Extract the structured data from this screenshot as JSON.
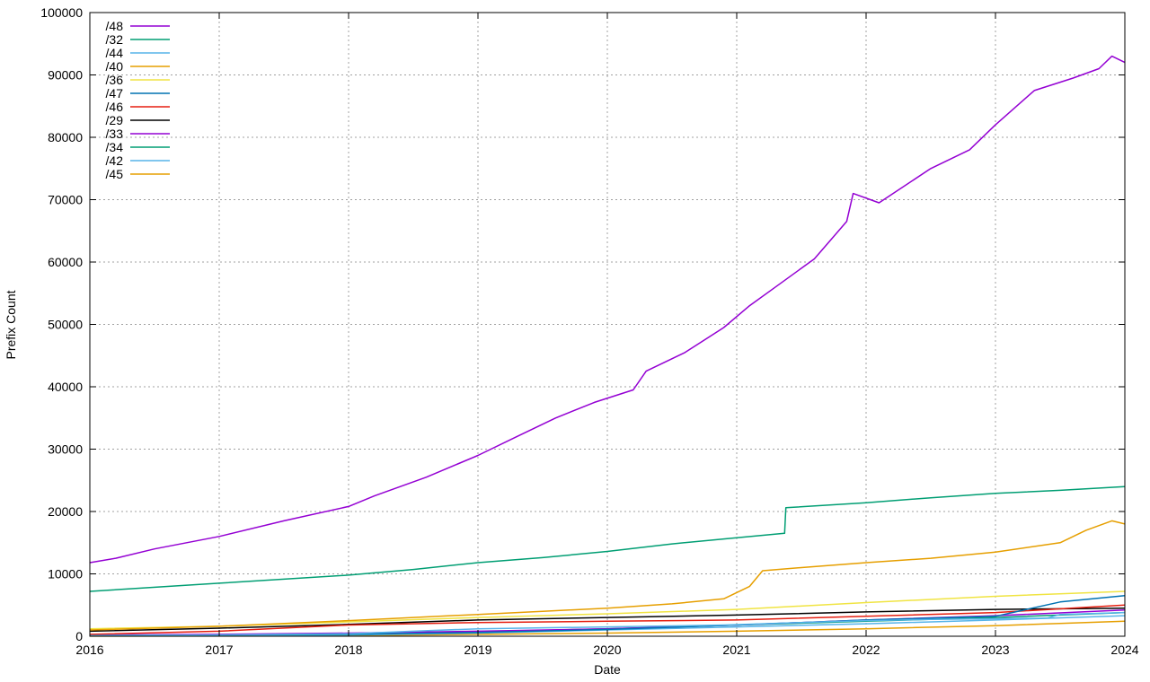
{
  "chart_data": {
    "type": "line",
    "title": "",
    "xlabel": "Date",
    "ylabel": "Prefix Count",
    "xlim": [
      2016,
      2024
    ],
    "ylim": [
      0,
      100000
    ],
    "x_ticks": [
      "2016",
      "2017",
      "2018",
      "2019",
      "2020",
      "2021",
      "2022",
      "2023",
      "2024"
    ],
    "y_ticks": [
      "0",
      "10000",
      "20000",
      "30000",
      "40000",
      "50000",
      "60000",
      "70000",
      "80000",
      "90000",
      "100000"
    ],
    "grid": true,
    "legend_position": "top-left",
    "series": [
      {
        "name": "/48",
        "color": "#9400d3",
        "x": [
          2016,
          2016.2,
          2016.5,
          2017,
          2017.5,
          2018,
          2018.2,
          2018.4,
          2018.6,
          2019,
          2019.3,
          2019.6,
          2019.9,
          2020.2,
          2020.3,
          2020.6,
          2020.9,
          2021.1,
          2021.3,
          2021.6,
          2021.85,
          2021.9,
          2022.1,
          2022.5,
          2022.8,
          2023,
          2023.3,
          2023.6,
          2023.8,
          2023.9,
          2024
        ],
        "y": [
          11800,
          12500,
          14000,
          16000,
          18500,
          20800,
          22500,
          24000,
          25500,
          29000,
          32000,
          35000,
          37500,
          39500,
          42500,
          45500,
          49500,
          53000,
          56000,
          60500,
          66500,
          71000,
          69500,
          75000,
          78000,
          82000,
          87500,
          89500,
          91000,
          93000,
          92000
        ]
      },
      {
        "name": "/32",
        "color": "#009e73",
        "x": [
          2016,
          2017,
          2018,
          2018.5,
          2019,
          2019.5,
          2020,
          2020.5,
          2021,
          2021.37,
          2021.38,
          2022,
          2022.5,
          2023,
          2023.5,
          2024
        ],
        "y": [
          7200,
          8500,
          9800,
          10700,
          11800,
          12600,
          13600,
          14800,
          15800,
          16500,
          20600,
          21400,
          22200,
          22900,
          23400,
          24000
        ]
      },
      {
        "name": "/44",
        "color": "#56b4e9",
        "x": [
          2016,
          2017,
          2018,
          2018.5,
          2019,
          2020,
          2020.9,
          2021.2,
          2021.5,
          2022,
          2022.5,
          2023,
          2023.4,
          2023.5,
          2024
        ],
        "y": [
          100,
          200,
          400,
          800,
          1200,
          1500,
          1800,
          2000,
          2200,
          2500,
          2700,
          2800,
          2900,
          3500,
          3800
        ]
      },
      {
        "name": "/40",
        "color": "#e69f00",
        "x": [
          2016,
          2017,
          2018,
          2019,
          2019.5,
          2020,
          2020.5,
          2020.9,
          2021.1,
          2021.2,
          2021.5,
          2022,
          2022.5,
          2023,
          2023.5,
          2023.7,
          2023.9,
          2024
        ],
        "y": [
          1000,
          1600,
          2500,
          3500,
          4000,
          4500,
          5200,
          6000,
          8000,
          10500,
          11000,
          11800,
          12500,
          13500,
          15000,
          17000,
          18500,
          18000
        ]
      },
      {
        "name": "/36",
        "color": "#f0e442",
        "x": [
          2016,
          2017,
          2018,
          2019,
          2020,
          2021,
          2022,
          2023,
          2024
        ],
        "y": [
          1200,
          1600,
          2300,
          3000,
          3600,
          4300,
          5400,
          6400,
          7200
        ]
      },
      {
        "name": "/47",
        "color": "#0072b2",
        "x": [
          2016,
          2017,
          2018,
          2019,
          2020,
          2021,
          2022,
          2023,
          2023.5,
          2024
        ],
        "y": [
          100,
          200,
          350,
          600,
          1100,
          1800,
          2600,
          3200,
          5500,
          6500
        ]
      },
      {
        "name": "/46",
        "color": "#e51e10",
        "x": [
          2016,
          2017,
          2018,
          2019,
          2020,
          2021,
          2022,
          2023,
          2024
        ],
        "y": [
          300,
          800,
          1800,
          2200,
          2400,
          2600,
          3200,
          3800,
          5000
        ]
      },
      {
        "name": "/29",
        "color": "#000000",
        "x": [
          2016,
          2017,
          2018,
          2019,
          2020,
          2021,
          2022,
          2023,
          2024
        ],
        "y": [
          800,
          1300,
          1900,
          2600,
          3000,
          3400,
          3900,
          4300,
          4500
        ]
      },
      {
        "name": "/33",
        "color": "#9400d3",
        "x": [
          2016,
          2017,
          2018,
          2019,
          2020,
          2021,
          2022,
          2023,
          2024
        ],
        "y": [
          200,
          300,
          500,
          800,
          1200,
          1800,
          2600,
          3300,
          4200
        ]
      },
      {
        "name": "/34",
        "color": "#009e73",
        "x": [
          2016,
          2017,
          2018,
          2019,
          2020,
          2021,
          2022,
          2023,
          2024
        ],
        "y": [
          100,
          200,
          300,
          700,
          1200,
          1800,
          2400,
          3000,
          3800
        ]
      },
      {
        "name": "/42",
        "color": "#56b4e9",
        "x": [
          2016,
          2017,
          2018,
          2019,
          2020,
          2021,
          2022,
          2023,
          2024
        ],
        "y": [
          50,
          100,
          200,
          500,
          1000,
          1500,
          2000,
          2600,
          3300
        ]
      },
      {
        "name": "/45",
        "color": "#e69f00",
        "x": [
          2016,
          2017,
          2018,
          2019,
          2020,
          2021,
          2022,
          2023,
          2024
        ],
        "y": [
          20,
          50,
          100,
          300,
          500,
          800,
          1200,
          1700,
          2400
        ]
      }
    ]
  }
}
